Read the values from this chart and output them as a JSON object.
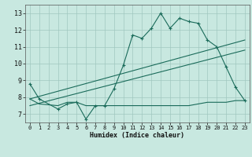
{
  "background_color": "#c8e8e0",
  "grid_color": "#a0c8c0",
  "line_color": "#1a6b5a",
  "xlabel": "Humidex (Indice chaleur)",
  "xlim": [
    -0.5,
    23.5
  ],
  "ylim": [
    6.5,
    13.5
  ],
  "yticks": [
    7,
    8,
    9,
    10,
    11,
    12,
    13
  ],
  "xticks": [
    0,
    1,
    2,
    3,
    4,
    5,
    6,
    7,
    8,
    9,
    10,
    11,
    12,
    13,
    14,
    15,
    16,
    17,
    18,
    19,
    20,
    21,
    22,
    23
  ],
  "series1_x": [
    0,
    1,
    3,
    4,
    5,
    6,
    7,
    8,
    9,
    10,
    11,
    12,
    13,
    14,
    15,
    16,
    17,
    18,
    19,
    20,
    21,
    22,
    23
  ],
  "series1_y": [
    8.8,
    7.9,
    7.3,
    7.6,
    7.7,
    6.7,
    7.5,
    7.5,
    8.5,
    9.9,
    11.7,
    11.5,
    12.1,
    13.0,
    12.1,
    12.7,
    12.5,
    12.4,
    11.4,
    11.0,
    9.8,
    8.6,
    7.8
  ],
  "series2_x": [
    0,
    1,
    3,
    4,
    5,
    6,
    7,
    8,
    9,
    10,
    11,
    12,
    13,
    14,
    15,
    16,
    17,
    18,
    19,
    20,
    21,
    22,
    23
  ],
  "series2_y": [
    7.9,
    7.6,
    7.5,
    7.7,
    7.7,
    7.5,
    7.5,
    7.5,
    7.5,
    7.5,
    7.5,
    7.5,
    7.5,
    7.5,
    7.5,
    7.5,
    7.5,
    7.6,
    7.7,
    7.7,
    7.7,
    7.8,
    7.8
  ],
  "line1_x": [
    0,
    23
  ],
  "line1_y": [
    7.9,
    11.4
  ],
  "line2_x": [
    0,
    23
  ],
  "line2_y": [
    7.5,
    10.8
  ]
}
